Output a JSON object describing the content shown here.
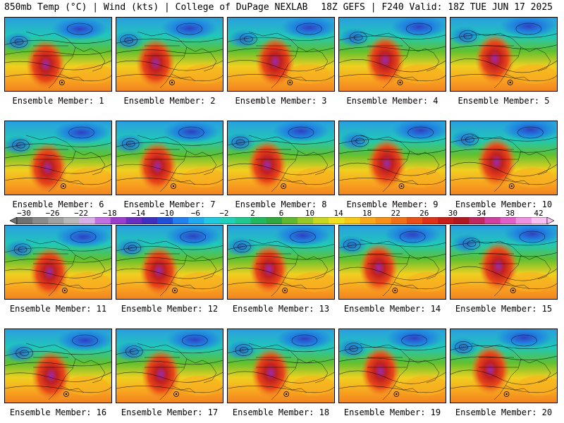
{
  "header": {
    "left": "850mb Temp (°C) | Wind (kts) | College of DuPage NEXLAB",
    "right": "18Z GEFS | F240 Valid: 18Z TUE JUN 17 2025"
  },
  "panels": [
    {
      "label": "Ensemble Member: 1"
    },
    {
      "label": "Ensemble Member: 2"
    },
    {
      "label": "Ensemble Member: 3"
    },
    {
      "label": "Ensemble Member: 4"
    },
    {
      "label": "Ensemble Member: 5"
    },
    {
      "label": "Ensemble Member: 6"
    },
    {
      "label": "Ensemble Member: 7"
    },
    {
      "label": "Ensemble Member: 8"
    },
    {
      "label": "Ensemble Member: 9"
    },
    {
      "label": "Ensemble Member: 10"
    },
    {
      "label": "Ensemble Member: 11"
    },
    {
      "label": "Ensemble Member: 12"
    },
    {
      "label": "Ensemble Member: 13"
    },
    {
      "label": "Ensemble Member: 14"
    },
    {
      "label": "Ensemble Member: 15"
    },
    {
      "label": "Ensemble Member: 16"
    },
    {
      "label": "Ensemble Member: 17"
    },
    {
      "label": "Ensemble Member: 18"
    },
    {
      "label": "Ensemble Member: 19"
    },
    {
      "label": "Ensemble Member: 20"
    }
  ],
  "colorbar": {
    "ticks": [
      "−30",
      "−26",
      "−22",
      "−18",
      "−14",
      "−10",
      "−6",
      "−2",
      "2",
      "6",
      "10",
      "14",
      "18",
      "22",
      "26",
      "30",
      "34",
      "38",
      "42"
    ],
    "colors": [
      "#707070",
      "#8a8a8a",
      "#a0a0a0",
      "#b8b8b8",
      "#d8b0e8",
      "#c070e0",
      "#9a3ed0",
      "#6a2ec0",
      "#4030c0",
      "#2050d8",
      "#2080f0",
      "#20a8f0",
      "#20c8e0",
      "#20d0b8",
      "#20c890",
      "#20b860",
      "#30a840",
      "#60b830",
      "#98c828",
      "#c8d820",
      "#f0e020",
      "#f8c818",
      "#f8a818",
      "#f89018",
      "#f07018",
      "#e85018",
      "#e03018",
      "#c82018",
      "#b01820",
      "#c02860",
      "#d040a0",
      "#e060c8",
      "#f090e0",
      "#f8c0f0"
    ]
  }
}
